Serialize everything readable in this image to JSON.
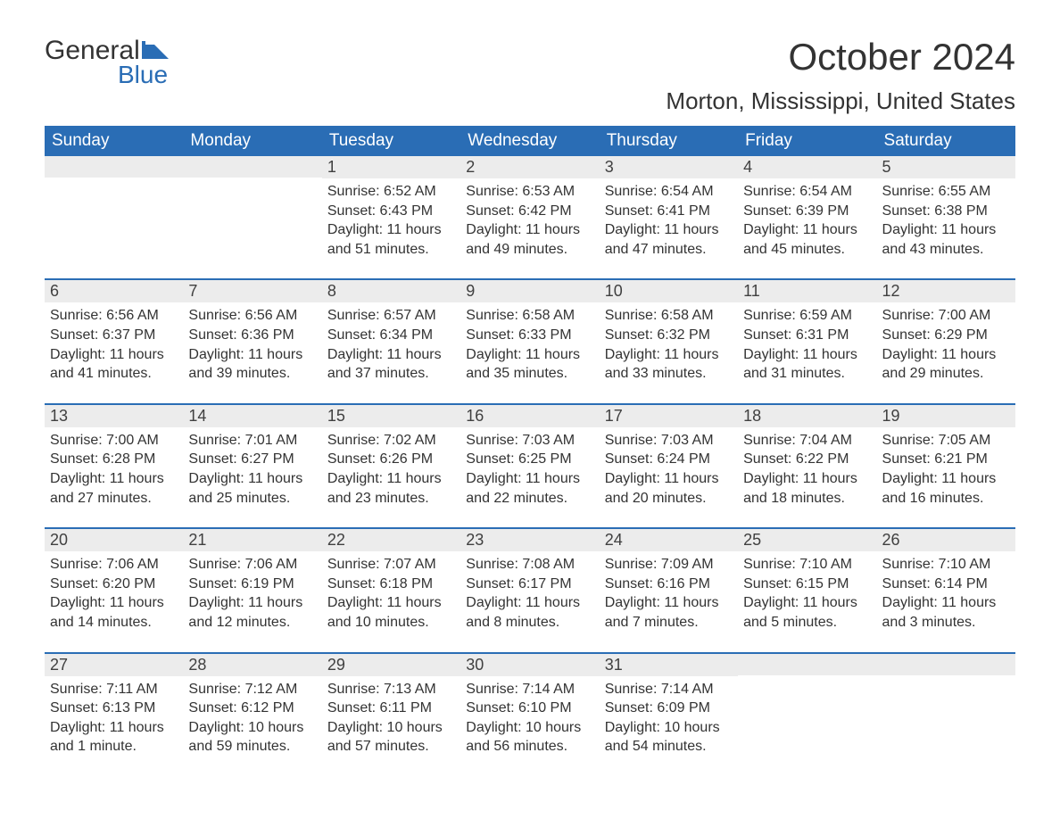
{
  "logo": {
    "general": "General",
    "blue": "Blue",
    "flag_color": "#2a6db5"
  },
  "title": "October 2024",
  "location": "Morton, Mississippi, United States",
  "colors": {
    "header_bg": "#2a6db5",
    "header_text": "#ffffff",
    "daynum_bg": "#ececec",
    "text": "#333333",
    "week_border": "#2a6db5",
    "page_bg": "#ffffff"
  },
  "typography": {
    "month_title_fontsize": 42,
    "location_fontsize": 26,
    "day_header_fontsize": 19,
    "daynum_fontsize": 18,
    "details_fontsize": 16
  },
  "day_headers": [
    "Sunday",
    "Monday",
    "Tuesday",
    "Wednesday",
    "Thursday",
    "Friday",
    "Saturday"
  ],
  "labels": {
    "sunrise": "Sunrise:",
    "sunset": "Sunset:",
    "daylight": "Daylight:"
  },
  "weeks": [
    [
      {
        "day": "",
        "sunrise": "",
        "sunset": "",
        "daylight1": "",
        "daylight2": ""
      },
      {
        "day": "",
        "sunrise": "",
        "sunset": "",
        "daylight1": "",
        "daylight2": ""
      },
      {
        "day": "1",
        "sunrise": "Sunrise: 6:52 AM",
        "sunset": "Sunset: 6:43 PM",
        "daylight1": "Daylight: 11 hours",
        "daylight2": "and 51 minutes."
      },
      {
        "day": "2",
        "sunrise": "Sunrise: 6:53 AM",
        "sunset": "Sunset: 6:42 PM",
        "daylight1": "Daylight: 11 hours",
        "daylight2": "and 49 minutes."
      },
      {
        "day": "3",
        "sunrise": "Sunrise: 6:54 AM",
        "sunset": "Sunset: 6:41 PM",
        "daylight1": "Daylight: 11 hours",
        "daylight2": "and 47 minutes."
      },
      {
        "day": "4",
        "sunrise": "Sunrise: 6:54 AM",
        "sunset": "Sunset: 6:39 PM",
        "daylight1": "Daylight: 11 hours",
        "daylight2": "and 45 minutes."
      },
      {
        "day": "5",
        "sunrise": "Sunrise: 6:55 AM",
        "sunset": "Sunset: 6:38 PM",
        "daylight1": "Daylight: 11 hours",
        "daylight2": "and 43 minutes."
      }
    ],
    [
      {
        "day": "6",
        "sunrise": "Sunrise: 6:56 AM",
        "sunset": "Sunset: 6:37 PM",
        "daylight1": "Daylight: 11 hours",
        "daylight2": "and 41 minutes."
      },
      {
        "day": "7",
        "sunrise": "Sunrise: 6:56 AM",
        "sunset": "Sunset: 6:36 PM",
        "daylight1": "Daylight: 11 hours",
        "daylight2": "and 39 minutes."
      },
      {
        "day": "8",
        "sunrise": "Sunrise: 6:57 AM",
        "sunset": "Sunset: 6:34 PM",
        "daylight1": "Daylight: 11 hours",
        "daylight2": "and 37 minutes."
      },
      {
        "day": "9",
        "sunrise": "Sunrise: 6:58 AM",
        "sunset": "Sunset: 6:33 PM",
        "daylight1": "Daylight: 11 hours",
        "daylight2": "and 35 minutes."
      },
      {
        "day": "10",
        "sunrise": "Sunrise: 6:58 AM",
        "sunset": "Sunset: 6:32 PM",
        "daylight1": "Daylight: 11 hours",
        "daylight2": "and 33 minutes."
      },
      {
        "day": "11",
        "sunrise": "Sunrise: 6:59 AM",
        "sunset": "Sunset: 6:31 PM",
        "daylight1": "Daylight: 11 hours",
        "daylight2": "and 31 minutes."
      },
      {
        "day": "12",
        "sunrise": "Sunrise: 7:00 AM",
        "sunset": "Sunset: 6:29 PM",
        "daylight1": "Daylight: 11 hours",
        "daylight2": "and 29 minutes."
      }
    ],
    [
      {
        "day": "13",
        "sunrise": "Sunrise: 7:00 AM",
        "sunset": "Sunset: 6:28 PM",
        "daylight1": "Daylight: 11 hours",
        "daylight2": "and 27 minutes."
      },
      {
        "day": "14",
        "sunrise": "Sunrise: 7:01 AM",
        "sunset": "Sunset: 6:27 PM",
        "daylight1": "Daylight: 11 hours",
        "daylight2": "and 25 minutes."
      },
      {
        "day": "15",
        "sunrise": "Sunrise: 7:02 AM",
        "sunset": "Sunset: 6:26 PM",
        "daylight1": "Daylight: 11 hours",
        "daylight2": "and 23 minutes."
      },
      {
        "day": "16",
        "sunrise": "Sunrise: 7:03 AM",
        "sunset": "Sunset: 6:25 PM",
        "daylight1": "Daylight: 11 hours",
        "daylight2": "and 22 minutes."
      },
      {
        "day": "17",
        "sunrise": "Sunrise: 7:03 AM",
        "sunset": "Sunset: 6:24 PM",
        "daylight1": "Daylight: 11 hours",
        "daylight2": "and 20 minutes."
      },
      {
        "day": "18",
        "sunrise": "Sunrise: 7:04 AM",
        "sunset": "Sunset: 6:22 PM",
        "daylight1": "Daylight: 11 hours",
        "daylight2": "and 18 minutes."
      },
      {
        "day": "19",
        "sunrise": "Sunrise: 7:05 AM",
        "sunset": "Sunset: 6:21 PM",
        "daylight1": "Daylight: 11 hours",
        "daylight2": "and 16 minutes."
      }
    ],
    [
      {
        "day": "20",
        "sunrise": "Sunrise: 7:06 AM",
        "sunset": "Sunset: 6:20 PM",
        "daylight1": "Daylight: 11 hours",
        "daylight2": "and 14 minutes."
      },
      {
        "day": "21",
        "sunrise": "Sunrise: 7:06 AM",
        "sunset": "Sunset: 6:19 PM",
        "daylight1": "Daylight: 11 hours",
        "daylight2": "and 12 minutes."
      },
      {
        "day": "22",
        "sunrise": "Sunrise: 7:07 AM",
        "sunset": "Sunset: 6:18 PM",
        "daylight1": "Daylight: 11 hours",
        "daylight2": "and 10 minutes."
      },
      {
        "day": "23",
        "sunrise": "Sunrise: 7:08 AM",
        "sunset": "Sunset: 6:17 PM",
        "daylight1": "Daylight: 11 hours",
        "daylight2": "and 8 minutes."
      },
      {
        "day": "24",
        "sunrise": "Sunrise: 7:09 AM",
        "sunset": "Sunset: 6:16 PM",
        "daylight1": "Daylight: 11 hours",
        "daylight2": "and 7 minutes."
      },
      {
        "day": "25",
        "sunrise": "Sunrise: 7:10 AM",
        "sunset": "Sunset: 6:15 PM",
        "daylight1": "Daylight: 11 hours",
        "daylight2": "and 5 minutes."
      },
      {
        "day": "26",
        "sunrise": "Sunrise: 7:10 AM",
        "sunset": "Sunset: 6:14 PM",
        "daylight1": "Daylight: 11 hours",
        "daylight2": "and 3 minutes."
      }
    ],
    [
      {
        "day": "27",
        "sunrise": "Sunrise: 7:11 AM",
        "sunset": "Sunset: 6:13 PM",
        "daylight1": "Daylight: 11 hours",
        "daylight2": "and 1 minute."
      },
      {
        "day": "28",
        "sunrise": "Sunrise: 7:12 AM",
        "sunset": "Sunset: 6:12 PM",
        "daylight1": "Daylight: 10 hours",
        "daylight2": "and 59 minutes."
      },
      {
        "day": "29",
        "sunrise": "Sunrise: 7:13 AM",
        "sunset": "Sunset: 6:11 PM",
        "daylight1": "Daylight: 10 hours",
        "daylight2": "and 57 minutes."
      },
      {
        "day": "30",
        "sunrise": "Sunrise: 7:14 AM",
        "sunset": "Sunset: 6:10 PM",
        "daylight1": "Daylight: 10 hours",
        "daylight2": "and 56 minutes."
      },
      {
        "day": "31",
        "sunrise": "Sunrise: 7:14 AM",
        "sunset": "Sunset: 6:09 PM",
        "daylight1": "Daylight: 10 hours",
        "daylight2": "and 54 minutes."
      },
      {
        "day": "",
        "sunrise": "",
        "sunset": "",
        "daylight1": "",
        "daylight2": ""
      },
      {
        "day": "",
        "sunrise": "",
        "sunset": "",
        "daylight1": "",
        "daylight2": ""
      }
    ]
  ]
}
